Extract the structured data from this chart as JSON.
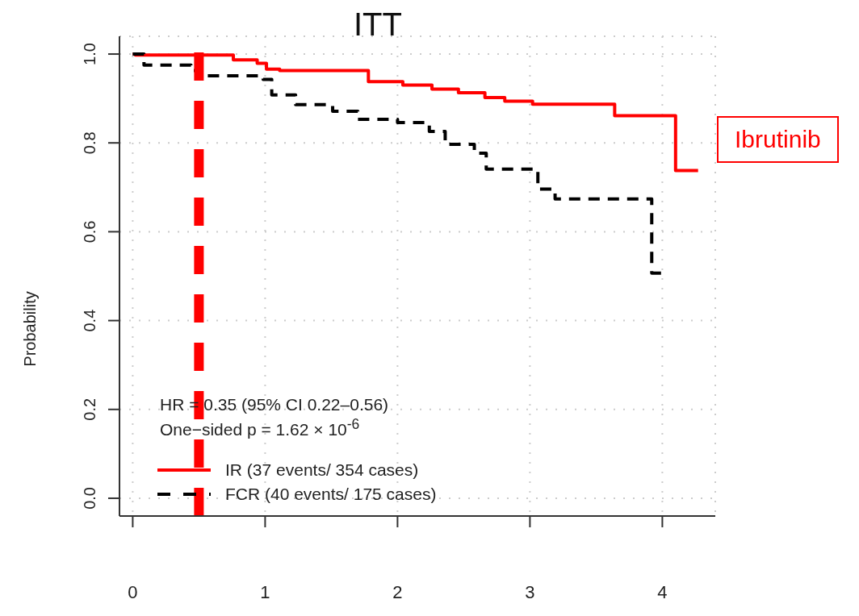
{
  "chart_data": {
    "type": "step",
    "title": "ITT",
    "ylabel": "Probability",
    "xlim": [
      -0.1,
      4.4
    ],
    "xticks": [
      0,
      1,
      2,
      3,
      4
    ],
    "ylim": [
      -0.04,
      1.04
    ],
    "yticks": [
      {
        "value": 0,
        "label": "0.0"
      },
      0.2,
      0.4,
      0.6,
      0.8,
      {
        "value": 1,
        "label": "1.0"
      }
    ],
    "grid": true,
    "legend": "bottom left",
    "series": [
      {
        "name": "IR  (37 events/ 354 cases)",
        "color": "#ff0000",
        "line_style": "solid",
        "x": [
          0,
          0.02,
          0.7,
          0.76,
          0.94,
          1.01,
          1.11,
          1.67,
          1.78,
          2.04,
          2.26,
          2.46,
          2.66,
          2.81,
          3.02,
          3.57,
          3.64,
          4.1,
          4.27
        ],
        "values": [
          1,
          0.998,
          0.998,
          0.987,
          0.979,
          0.966,
          0.963,
          0.963,
          0.938,
          0.93,
          0.921,
          0.913,
          0.902,
          0.894,
          0.887,
          0.887,
          0.861,
          0.738,
          0.738
        ]
      },
      {
        "name": "FCR  (40 events/ 175 cases)",
        "color": "#000000",
        "line_style": "dashed",
        "x": [
          0,
          0.085,
          0.44,
          0.52,
          0.985,
          1.05,
          1.23,
          1.51,
          1.7,
          2.0,
          2.24,
          2.36,
          2.58,
          2.67,
          3.06,
          3.19,
          3.92,
          4.0
        ],
        "values": [
          1,
          0.975,
          0.963,
          0.951,
          0.943,
          0.908,
          0.886,
          0.871,
          0.853,
          0.846,
          0.826,
          0.797,
          0.777,
          0.741,
          0.696,
          0.674,
          0.507,
          0.507
        ]
      }
    ],
    "ref_lines": [
      {
        "axis": "x",
        "value": 0.5,
        "color": "#ff0000",
        "line_style": "dashed"
      }
    ],
    "annotations": [
      "HR = 0.35 (95% CI 0.22–0.56)",
      "One−sided p = 1.62 × 10$^{-6}$",
      "Ibrutinib"
    ]
  }
}
